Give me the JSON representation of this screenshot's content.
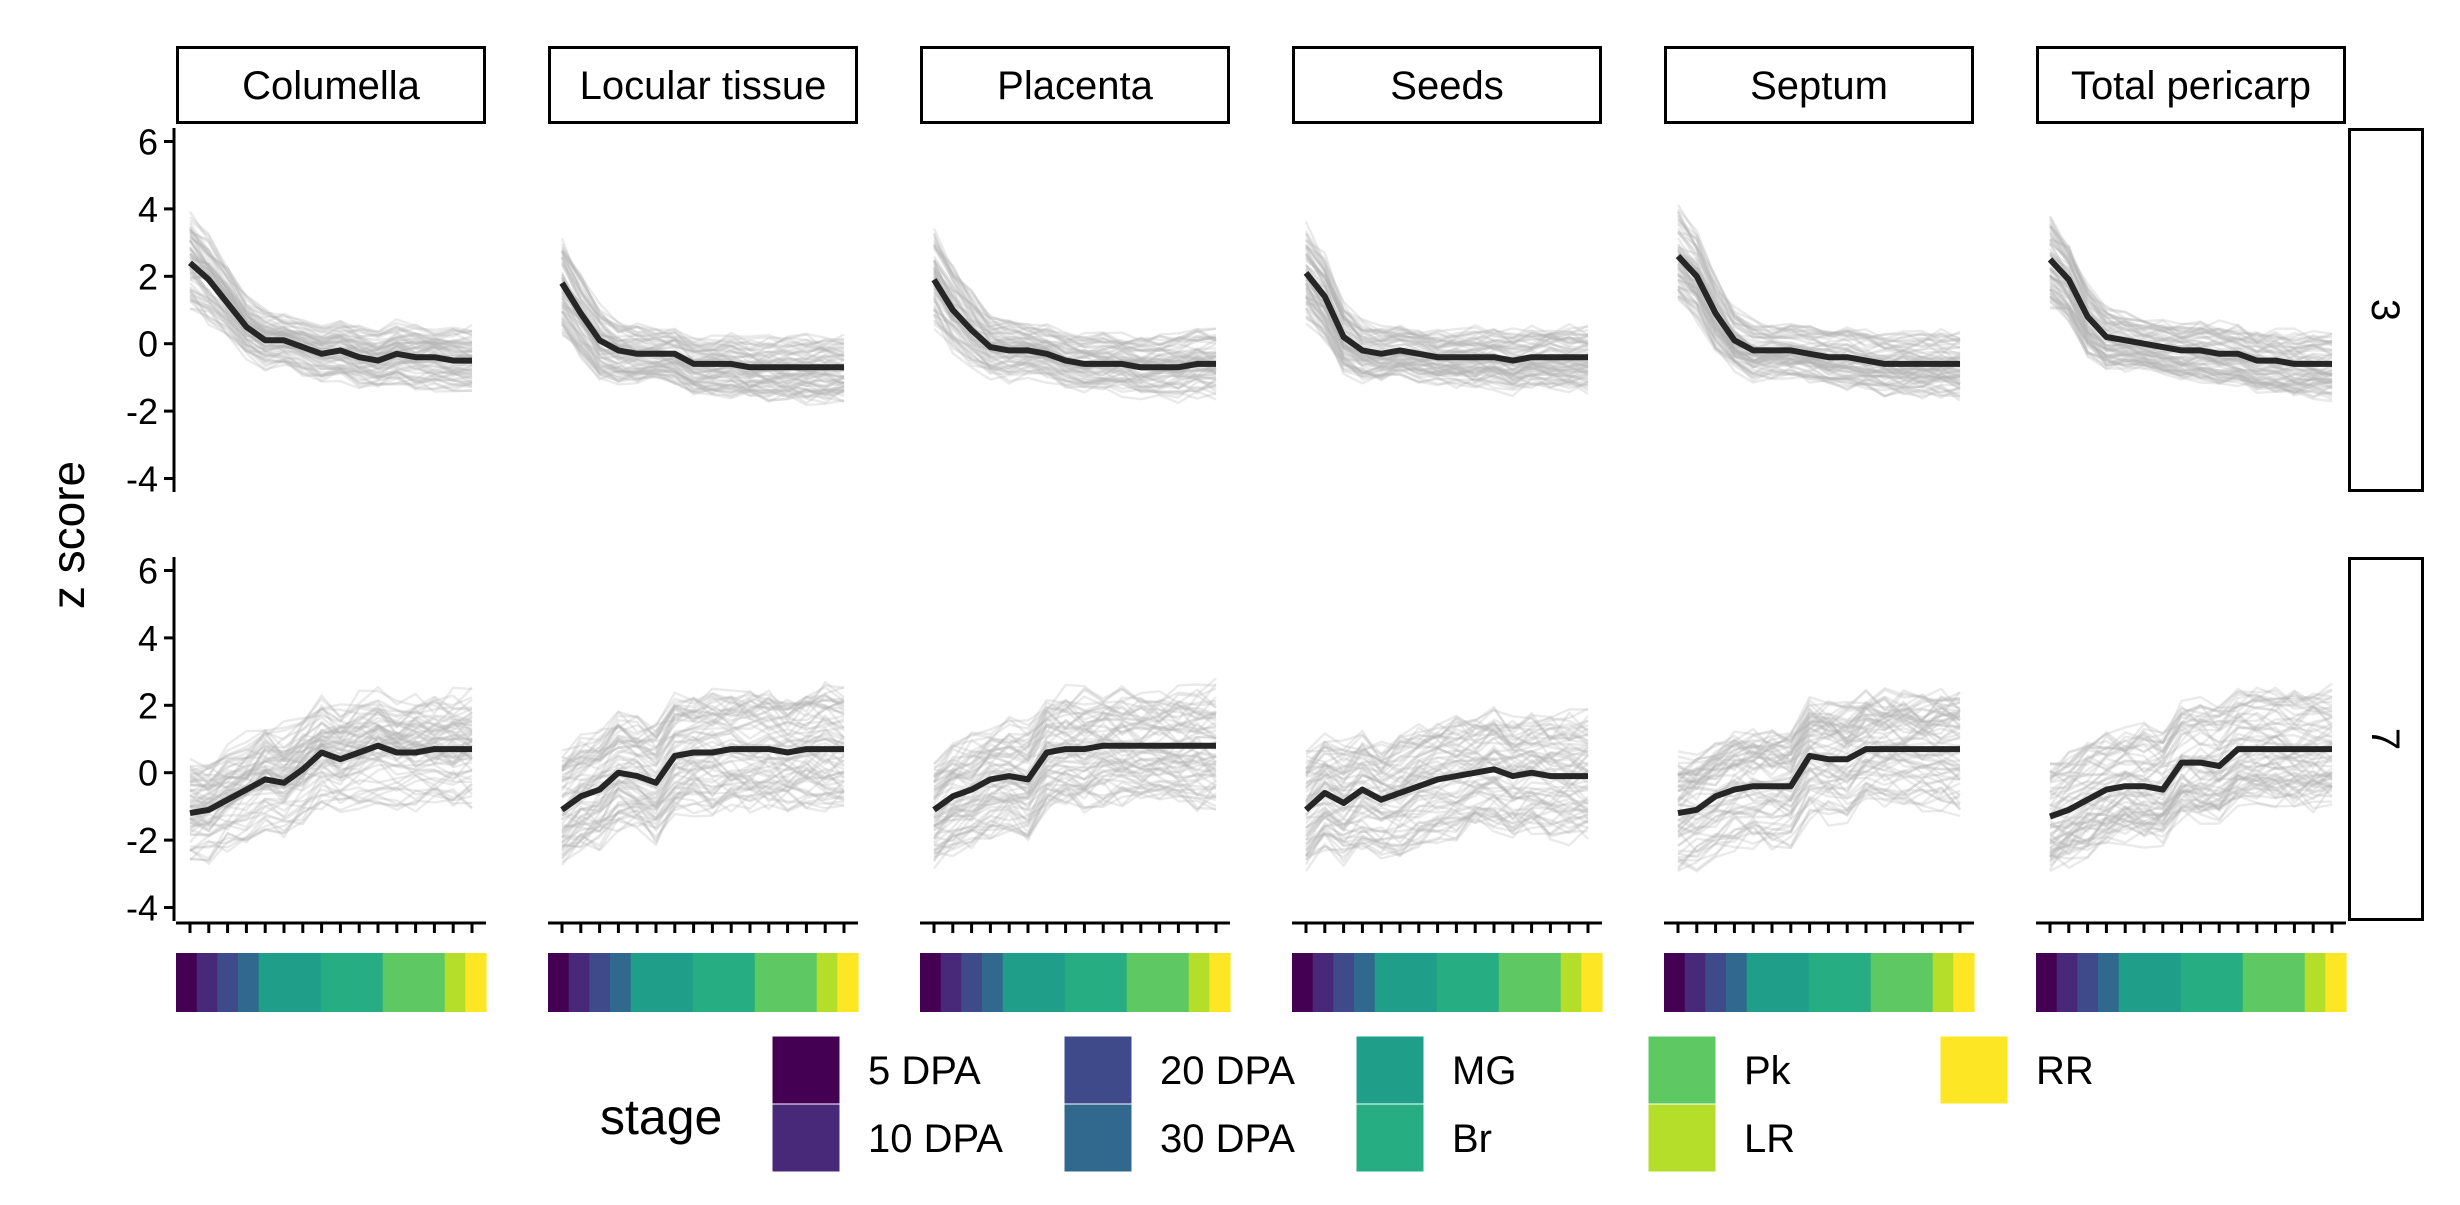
{
  "chart_data": {
    "type": "line",
    "ylabel": "z score",
    "ylim": [
      -4.4,
      6.4
    ],
    "y_ticks": [
      -4,
      -2,
      0,
      2,
      4,
      6
    ],
    "n_timepoints": 16,
    "columns": [
      "Columella",
      "Locular tissue",
      "Placenta",
      "Seeds",
      "Septum",
      "Total pericarp"
    ],
    "rows": [
      {
        "label": "3",
        "band": {
          "low": [
            1.2,
            0.9,
            0.6,
            0.2,
            -0.2,
            -0.3,
            -0.5,
            -0.6,
            -0.7,
            -0.8,
            -0.8,
            -0.9,
            -0.9,
            -1.0,
            -1.0,
            -1.0
          ],
          "high": [
            3.8,
            3.2,
            2.6,
            1.9,
            1.4,
            1.1,
            1.0,
            0.9,
            0.9,
            0.9,
            0.8,
            0.8,
            0.8,
            0.8,
            0.8,
            0.8
          ]
        },
        "means": [
          {
            "panel": "Columella",
            "values": [
              2.4,
              1.9,
              1.2,
              0.5,
              0.1,
              0.1,
              -0.1,
              -0.3,
              -0.2,
              -0.4,
              -0.5,
              -0.3,
              -0.4,
              -0.4,
              -0.5,
              -0.5
            ]
          },
          {
            "panel": "Locular tissue",
            "values": [
              1.8,
              0.9,
              0.1,
              -0.2,
              -0.3,
              -0.3,
              -0.3,
              -0.6,
              -0.6,
              -0.6,
              -0.7,
              -0.7,
              -0.7,
              -0.7,
              -0.7,
              -0.7
            ]
          },
          {
            "panel": "Placenta",
            "values": [
              1.9,
              1.0,
              0.4,
              -0.1,
              -0.2,
              -0.2,
              -0.3,
              -0.5,
              -0.6,
              -0.6,
              -0.6,
              -0.7,
              -0.7,
              -0.7,
              -0.6,
              -0.6
            ]
          },
          {
            "panel": "Seeds",
            "values": [
              2.1,
              1.4,
              0.2,
              -0.2,
              -0.3,
              -0.2,
              -0.3,
              -0.4,
              -0.4,
              -0.4,
              -0.4,
              -0.5,
              -0.4,
              -0.4,
              -0.4,
              -0.4
            ]
          },
          {
            "panel": "Septum",
            "values": [
              2.6,
              2.0,
              0.9,
              0.1,
              -0.2,
              -0.2,
              -0.2,
              -0.3,
              -0.4,
              -0.4,
              -0.5,
              -0.6,
              -0.6,
              -0.6,
              -0.6,
              -0.6
            ]
          },
          {
            "panel": "Total pericarp",
            "values": [
              2.5,
              1.9,
              0.8,
              0.2,
              0.1,
              0.0,
              -0.1,
              -0.2,
              -0.2,
              -0.3,
              -0.3,
              -0.5,
              -0.5,
              -0.6,
              -0.6,
              -0.6
            ]
          }
        ]
      },
      {
        "label": "7",
        "band": {
          "low": [
            -2.6,
            -2.4,
            -2.1,
            -1.8,
            -1.6,
            -1.5,
            -1.3,
            -1.2,
            -1.2,
            -1.1,
            -1.1,
            -1.1,
            -1.1,
            -1.1,
            -1.2,
            -1.2
          ],
          "high": [
            0.4,
            0.6,
            0.9,
            1.2,
            1.4,
            1.6,
            1.8,
            1.9,
            2.0,
            2.0,
            2.0,
            2.0,
            2.0,
            2.0,
            2.1,
            2.1
          ]
        },
        "means": [
          {
            "panel": "Columella",
            "values": [
              -1.2,
              -1.1,
              -0.8,
              -0.5,
              -0.2,
              -0.3,
              0.1,
              0.6,
              0.4,
              0.6,
              0.8,
              0.6,
              0.6,
              0.7,
              0.7,
              0.7
            ]
          },
          {
            "panel": "Locular tissue",
            "values": [
              -1.1,
              -0.7,
              -0.5,
              0.0,
              -0.1,
              -0.3,
              0.5,
              0.6,
              0.6,
              0.7,
              0.7,
              0.7,
              0.6,
              0.7,
              0.7,
              0.7
            ]
          },
          {
            "panel": "Placenta",
            "values": [
              -1.1,
              -0.7,
              -0.5,
              -0.2,
              -0.1,
              -0.2,
              0.6,
              0.7,
              0.7,
              0.8,
              0.8,
              0.8,
              0.8,
              0.8,
              0.8,
              0.8
            ]
          },
          {
            "panel": "Seeds",
            "values": [
              -1.1,
              -0.6,
              -0.9,
              -0.5,
              -0.8,
              -0.6,
              -0.4,
              -0.2,
              -0.1,
              0.0,
              0.1,
              -0.1,
              0.0,
              -0.1,
              -0.1,
              -0.1
            ]
          },
          {
            "panel": "Septum",
            "values": [
              -1.2,
              -1.1,
              -0.7,
              -0.5,
              -0.4,
              -0.4,
              -0.4,
              0.5,
              0.4,
              0.4,
              0.7,
              0.7,
              0.7,
              0.7,
              0.7,
              0.7
            ]
          },
          {
            "panel": "Total pericarp",
            "values": [
              -1.3,
              -1.1,
              -0.8,
              -0.5,
              -0.4,
              -0.4,
              -0.5,
              0.3,
              0.3,
              0.2,
              0.7,
              0.7,
              0.7,
              0.7,
              0.7,
              0.7
            ]
          }
        ]
      }
    ],
    "stage_strip": [
      {
        "stage": "5 DPA",
        "span": [
          0,
          1
        ]
      },
      {
        "stage": "10 DPA",
        "span": [
          1,
          2
        ]
      },
      {
        "stage": "20 DPA",
        "span": [
          2,
          3
        ]
      },
      {
        "stage": "30 DPA",
        "span": [
          3,
          4
        ]
      },
      {
        "stage": "MG",
        "span": [
          4,
          7
        ]
      },
      {
        "stage": "Br",
        "span": [
          7,
          10
        ]
      },
      {
        "stage": "Pk",
        "span": [
          10,
          13
        ]
      },
      {
        "stage": "LR",
        "span": [
          13,
          14
        ]
      },
      {
        "stage": "RR",
        "span": [
          14,
          15
        ]
      }
    ],
    "legend": {
      "title": "stage",
      "placement": "bottom",
      "entries": [
        {
          "label": "5 DPA",
          "color": "#440154"
        },
        {
          "label": "10 DPA",
          "color": "#482878"
        },
        {
          "label": "20 DPA",
          "color": "#3E4A89"
        },
        {
          "label": "30 DPA",
          "color": "#31688E"
        },
        {
          "label": "MG",
          "color": "#1F9E89"
        },
        {
          "label": "Br",
          "color": "#26AD81"
        },
        {
          "label": "Pk",
          "color": "#5EC962"
        },
        {
          "label": "LR",
          "color": "#B5DE2B"
        },
        {
          "label": "RR",
          "color": "#FDE725"
        }
      ]
    },
    "colors": {
      "mean_line": "#262626",
      "gene_lines": "#B3B3B3",
      "axis": "#000000"
    }
  }
}
